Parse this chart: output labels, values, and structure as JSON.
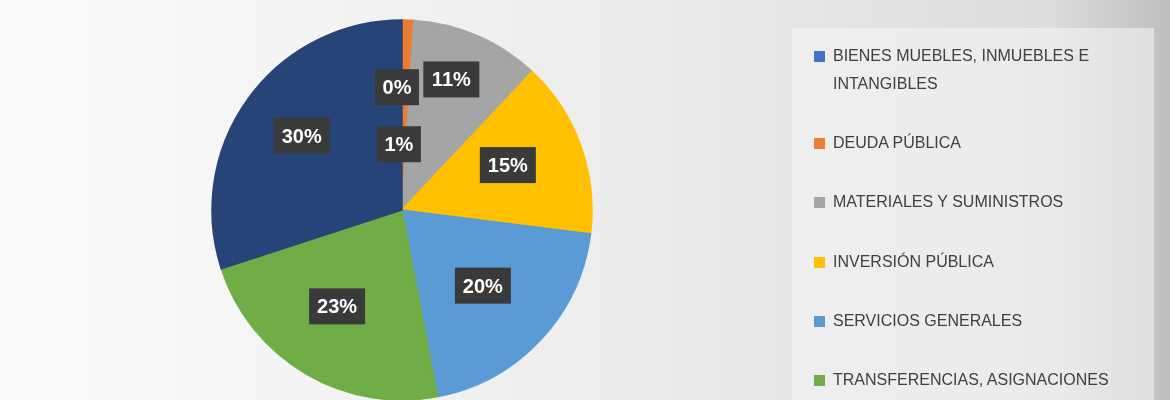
{
  "chart_data": {
    "type": "pie",
    "categories": [
      "BIENES MUEBLES, INMUEBLES E INTANGIBLES",
      "DEUDA PÚBLICA",
      "MATERIALES Y SUMINISTROS",
      "INVERSIÓN PÚBLICA",
      "SERVICIOS GENERALES",
      "TRANSFERENCIAS, ASIGNACIONES",
      null
    ],
    "values": [
      0,
      1,
      11,
      15,
      20,
      23,
      30
    ],
    "colors": [
      "#4472c4",
      "#ed7d31",
      "#a5a5a5",
      "#ffc000",
      "#5b9bd5",
      "#70ad47",
      "#264478"
    ],
    "value_labels": [
      "0%",
      "1%",
      "11%",
      "15%",
      "20%",
      "23%",
      "30%"
    ],
    "legend": "right"
  }
}
